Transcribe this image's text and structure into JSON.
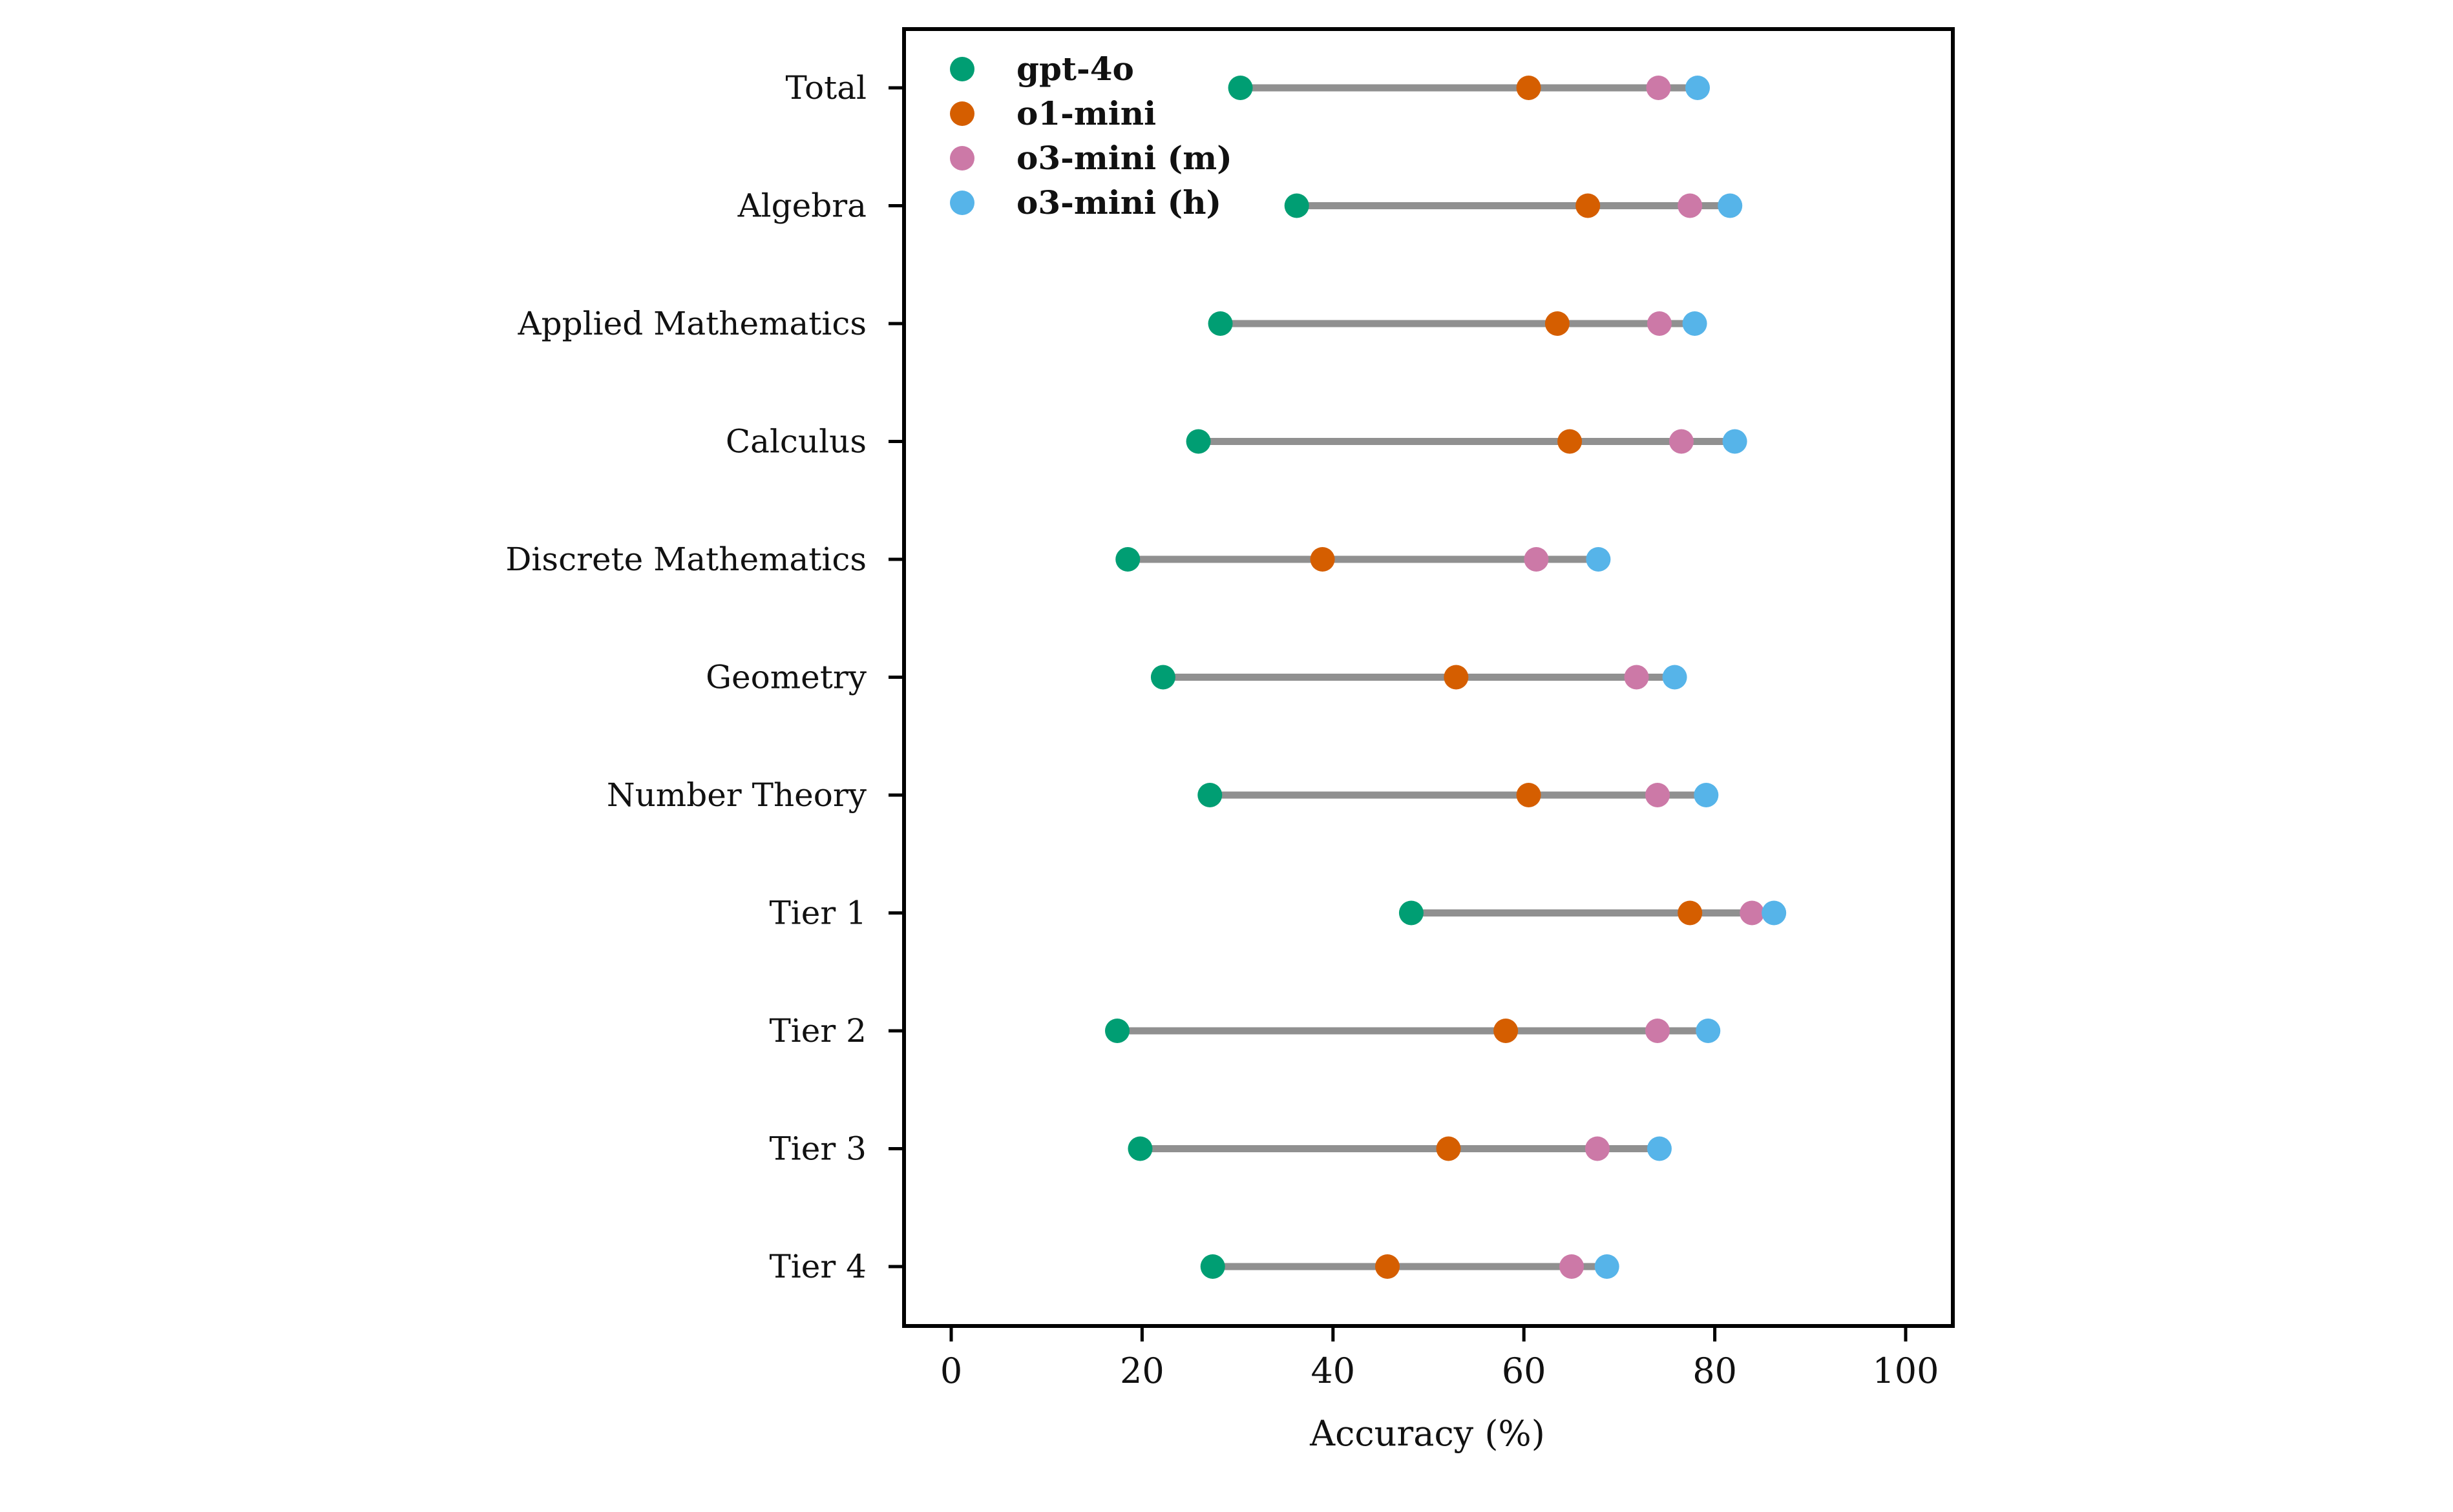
{
  "chart_data": {
    "type": "scatter",
    "subtype": "dumbbell",
    "title": "",
    "xlabel": "Accuracy (%)",
    "ylabel": "",
    "xlim": [
      -5,
      105
    ],
    "xticks": [
      0,
      20,
      40,
      60,
      80,
      100
    ],
    "xtick_labels": [
      "0",
      "20",
      "40",
      "60",
      "80",
      "100"
    ],
    "grid": false,
    "legend_position": "top-left",
    "categories": [
      "Total",
      "Algebra",
      "Applied Mathematics",
      "Calculus",
      "Discrete Mathematics",
      "Geometry",
      "Number Theory",
      "Tier 1",
      "Tier 2",
      "Tier 3",
      "Tier 4"
    ],
    "connector_color": "#909090",
    "series": [
      {
        "name": "gpt-4o",
        "color": "#009E73",
        "values": [
          30.3,
          36.2,
          28.2,
          25.9,
          18.5,
          22.2,
          27.1,
          48.2,
          17.4,
          19.8,
          27.4
        ]
      },
      {
        "name": "o1-mini",
        "color": "#D55E00",
        "values": [
          60.5,
          66.7,
          63.5,
          64.8,
          38.9,
          52.9,
          60.5,
          77.4,
          58.1,
          52.1,
          45.7
        ]
      },
      {
        "name": "o3-mini (m)",
        "color": "#CC79A7",
        "values": [
          74.1,
          77.4,
          74.2,
          76.5,
          61.3,
          71.8,
          74.0,
          83.9,
          74.0,
          67.7,
          65.0
        ]
      },
      {
        "name": "o3-mini (h)",
        "color": "#56B4E9",
        "values": [
          78.2,
          81.6,
          77.9,
          82.1,
          67.8,
          75.8,
          79.1,
          86.2,
          79.3,
          74.2,
          68.7
        ]
      }
    ]
  }
}
